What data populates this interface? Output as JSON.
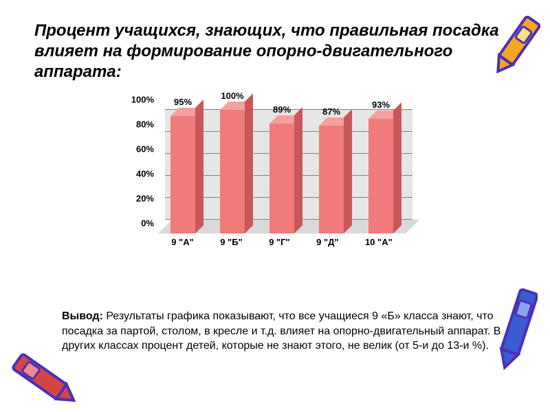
{
  "background_color": "#ffffff",
  "title": "Процент учащихся, знающих, что правильная посадка влияет на формирование опорно-двигательного аппарата:",
  "title_style": {
    "fontsize": 24,
    "weight": "bold",
    "italic": true,
    "color": "#000000"
  },
  "chart": {
    "type": "bar3d",
    "categories": [
      "9 \"А\"",
      "9 \"Б\"",
      "9 \"Г\"",
      "9 \"Д\"",
      "10 \"А\""
    ],
    "values": [
      95,
      100,
      89,
      87,
      93
    ],
    "value_labels": [
      "95%",
      "100%",
      "89%",
      "87%",
      "93%"
    ],
    "bar_color": "#ef7b7b",
    "bar_top_color": "#f5a0a0",
    "bar_side_color": "#c85858",
    "ylim": [
      0,
      100
    ],
    "yticks": [
      0,
      20,
      40,
      60,
      80,
      100
    ],
    "ytick_labels": [
      "0%",
      "20%",
      "40%",
      "60%",
      "80%",
      "100%"
    ],
    "back_wall_color": "#e6e6e6",
    "floor_color": "#d9d9d9",
    "grid_color": "#808080",
    "tick_fontsize": 13,
    "tick_weight": "bold",
    "value_label_fontsize": 13,
    "value_label_weight": "bold"
  },
  "conclusion_label": "Вывод:",
  "conclusion_text": " Результаты графика показывают, что все учащиеся 9 «Б» класса знают, что посадка за партой, столом, в кресле и т.д. влияет на опорно-двигательный аппарат. В других классах процент детей, которые не знают этого, не велик (от 5-и до 13-и %).",
  "conclusion_style": {
    "fontsize": 16
  },
  "decorations": {
    "crayon_yellow": {
      "body": "#f5a623",
      "outline": "#4b2fb7"
    },
    "crayon_blue": {
      "body": "#3b5bd1",
      "outline": "#4b2fb7"
    },
    "crayon_red": {
      "body": "#d64545",
      "outline": "#4b2fb7"
    }
  }
}
